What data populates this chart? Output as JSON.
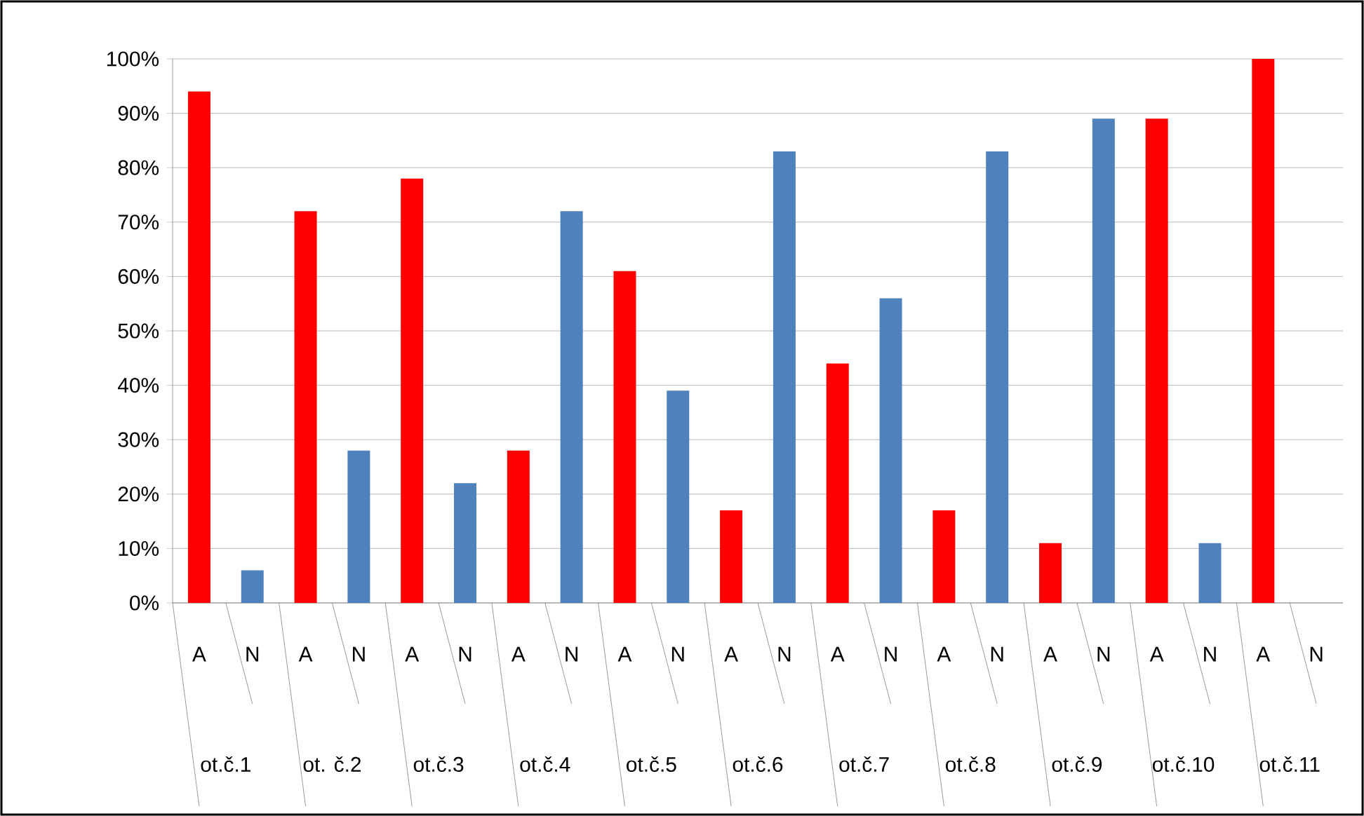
{
  "chart_data": {
    "type": "bar",
    "categories": [
      "A",
      "N",
      "A",
      "N",
      "A",
      "N",
      "A",
      "N",
      "A",
      "N",
      "A",
      "N",
      "A",
      "N",
      "A",
      "N",
      "A",
      "N",
      "A",
      "N",
      "A",
      "N"
    ],
    "values": [
      94,
      6,
      72,
      28,
      78,
      22,
      28,
      72,
      61,
      39,
      17,
      83,
      44,
      56,
      17,
      83,
      11,
      89,
      89,
      11,
      100,
      0
    ],
    "colors": [
      "#ff0000",
      "#4f81bd",
      "#ff0000",
      "#4f81bd",
      "#ff0000",
      "#4f81bd",
      "#ff0000",
      "#4f81bd",
      "#ff0000",
      "#4f81bd",
      "#ff0000",
      "#4f81bd",
      "#ff0000",
      "#4f81bd",
      "#ff0000",
      "#4f81bd",
      "#ff0000",
      "#4f81bd",
      "#ff0000",
      "#4f81bd",
      "#ff0000",
      "#4f81bd"
    ],
    "ylim": [
      0,
      100
    ],
    "yticks": [
      {
        "value": 0,
        "label": "0%"
      },
      {
        "value": 10,
        "label": "10%"
      },
      {
        "value": 20,
        "label": "20%"
      },
      {
        "value": 30,
        "label": "30%"
      },
      {
        "value": 40,
        "label": "40%"
      },
      {
        "value": 50,
        "label": "50%"
      },
      {
        "value": 60,
        "label": "60%"
      },
      {
        "value": 70,
        "label": "70%"
      },
      {
        "value": 80,
        "label": "80%"
      },
      {
        "value": 90,
        "label": "90%"
      },
      {
        "value": 100,
        "label": "100%"
      }
    ],
    "grid": "y",
    "annotations": [
      "ot.č.1",
      "ot. č.2",
      "ot.č.3",
      "ot.č.4",
      "ot.č.5",
      "ot.č.6",
      "ot.č.7",
      "ot.č.8",
      "ot.č.9",
      "ot.č.10",
      "ot.č.11"
    ]
  }
}
